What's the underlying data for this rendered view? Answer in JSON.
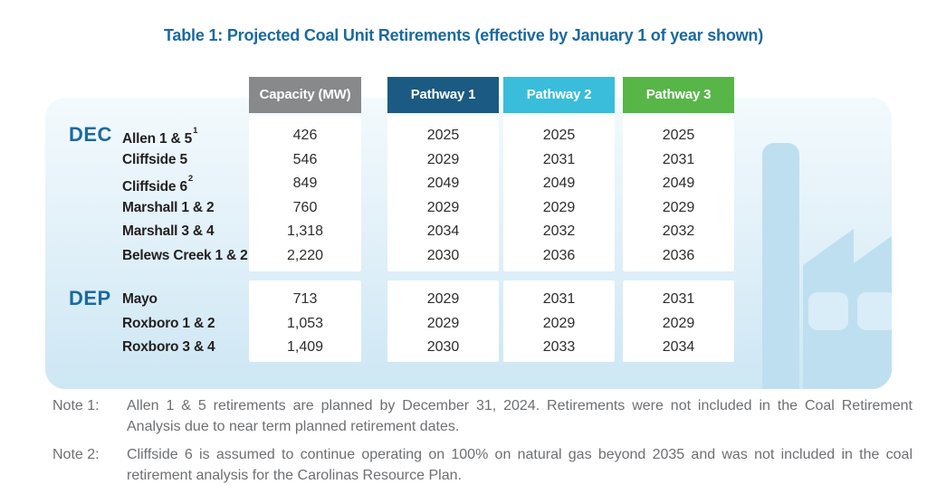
{
  "title": "Table 1: Projected Coal Unit Retirements (effective by January 1 of year shown)",
  "table": {
    "columns": [
      {
        "id": "capacity",
        "label": "Capacity (MW)",
        "color": "#87898b"
      },
      {
        "id": "pathway1",
        "label": "Pathway 1",
        "color": "#1b5a82"
      },
      {
        "id": "pathway2",
        "label": "Pathway 2",
        "color": "#39bdda"
      },
      {
        "id": "pathway3",
        "label": "Pathway 3",
        "color": "#58b548"
      }
    ],
    "groups": [
      {
        "name": "DEC",
        "rows": [
          {
            "unit": "Allen 1 & 5",
            "sup": "1",
            "capacity": "426",
            "pathway1": "2025",
            "pathway2": "2025",
            "pathway3": "2025"
          },
          {
            "unit": "Cliffside 5",
            "sup": "",
            "capacity": "546",
            "pathway1": "2029",
            "pathway2": "2031",
            "pathway3": "2031"
          },
          {
            "unit": "Cliffside 6",
            "sup": "2",
            "capacity": "849",
            "pathway1": "2049",
            "pathway2": "2049",
            "pathway3": "2049"
          },
          {
            "unit": "Marshall 1 & 2",
            "sup": "",
            "capacity": "760",
            "pathway1": "2029",
            "pathway2": "2029",
            "pathway3": "2029"
          },
          {
            "unit": "Marshall 3 & 4",
            "sup": "",
            "capacity": "1,318",
            "pathway1": "2034",
            "pathway2": "2032",
            "pathway3": "2032"
          },
          {
            "unit": "Belews Creek 1 & 2",
            "sup": "",
            "capacity": "2,220",
            "pathway1": "2030",
            "pathway2": "2036",
            "pathway3": "2036"
          }
        ]
      },
      {
        "name": "DEP",
        "rows": [
          {
            "unit": "Mayo",
            "sup": "",
            "capacity": "713",
            "pathway1": "2029",
            "pathway2": "2031",
            "pathway3": "2031"
          },
          {
            "unit": "Roxboro 1 & 2",
            "sup": "",
            "capacity": "1,053",
            "pathway1": "2029",
            "pathway2": "2029",
            "pathway3": "2029"
          },
          {
            "unit": "Roxboro 3 & 4",
            "sup": "",
            "capacity": "1,409",
            "pathway1": "2030",
            "pathway2": "2033",
            "pathway3": "2034"
          }
        ]
      }
    ]
  },
  "notes": [
    {
      "label": "Note 1:",
      "text": "Allen 1 & 5 retirements are planned by December 31, 2024. Retirements were not included in the Coal Retirement Analysis due to near term planned retirement dates."
    },
    {
      "label": "Note 2:",
      "text": "Cliffside 6 is assumed to continue operating on 100% on natural gas beyond 2035 and was not included in the coal retirement analysis for the Carolinas Resource Plan."
    }
  ],
  "colors": {
    "title_blue": "#1a6a9e",
    "group_label_blue": "#1a6a9e",
    "capacity_gray": "#87898b",
    "pathway1_blue": "#1b5a82",
    "pathway2_cyan": "#39bdda",
    "pathway3_green": "#58b548",
    "panel_top": "#f3fafd",
    "panel_bottom": "#cde7f4",
    "factory_silhouette": "#bedff0",
    "factory_window": "#d8edf8",
    "note_gray": "#6d6f72"
  },
  "icons": {
    "factory": "factory-silhouette-icon"
  }
}
